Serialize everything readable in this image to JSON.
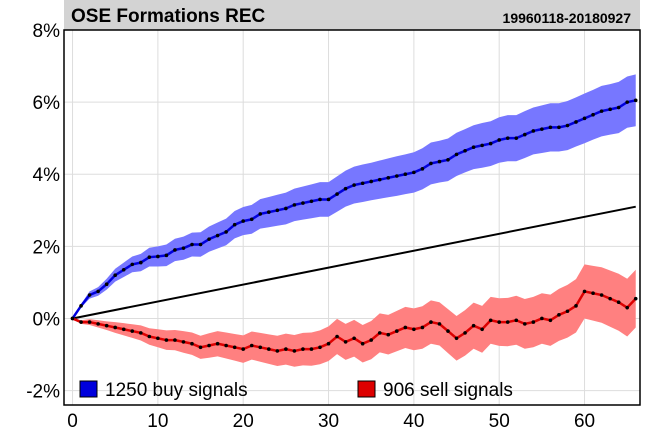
{
  "header": {
    "title": "OSE Formations REC",
    "date_range": "19960118-20180927"
  },
  "chart_data": {
    "type": "line",
    "title": "OSE Formations REC",
    "subtitle": "19960118-20180927",
    "xlim": [
      -1,
      66.5
    ],
    "ylim": [
      -2.4,
      8
    ],
    "x_ticks": [
      0,
      10,
      20,
      30,
      40,
      50,
      60
    ],
    "y_ticks": [
      -2,
      0,
      2,
      4,
      6,
      8
    ],
    "y_tick_labels": [
      "-2%",
      "0%",
      "2%",
      "4%",
      "6%",
      "8%"
    ],
    "grid": true,
    "legend_position": "bottom",
    "colors": {
      "buy": "#0000dd",
      "buy_band": "#7777ff",
      "sell": "#dd0000",
      "sell_band": "#ff8080",
      "benchmark": "#000000",
      "header_bg": "#d3d3d3"
    },
    "series": [
      {
        "name": "1250 buy signals",
        "x": [
          0,
          1,
          2,
          3,
          4,
          5,
          6,
          7,
          8,
          9,
          10,
          11,
          12,
          13,
          14,
          15,
          16,
          17,
          18,
          19,
          20,
          21,
          22,
          23,
          24,
          25,
          26,
          27,
          28,
          29,
          30,
          31,
          32,
          33,
          34,
          35,
          36,
          37,
          38,
          39,
          40,
          41,
          42,
          43,
          44,
          45,
          46,
          47,
          48,
          49,
          50,
          51,
          52,
          53,
          54,
          55,
          56,
          57,
          58,
          59,
          60,
          61,
          62,
          63,
          64,
          65,
          66
        ],
        "values": [
          0.0,
          0.35,
          0.65,
          0.75,
          0.95,
          1.2,
          1.35,
          1.5,
          1.55,
          1.7,
          1.72,
          1.75,
          1.9,
          1.95,
          2.05,
          2.05,
          2.2,
          2.3,
          2.4,
          2.6,
          2.7,
          2.75,
          2.9,
          2.95,
          3.0,
          3.05,
          3.15,
          3.2,
          3.25,
          3.3,
          3.3,
          3.45,
          3.6,
          3.7,
          3.75,
          3.8,
          3.85,
          3.9,
          3.95,
          4.0,
          4.05,
          4.15,
          4.3,
          4.35,
          4.4,
          4.55,
          4.65,
          4.75,
          4.8,
          4.85,
          4.95,
          5.0,
          5.0,
          5.1,
          5.2,
          5.25,
          5.3,
          5.3,
          5.35,
          5.45,
          5.55,
          5.65,
          5.75,
          5.8,
          5.85,
          6.0,
          6.05
        ],
        "band_half_width": [
          0.0,
          0.05,
          0.1,
          0.12,
          0.15,
          0.18,
          0.2,
          0.22,
          0.24,
          0.26,
          0.28,
          0.3,
          0.31,
          0.32,
          0.33,
          0.34,
          0.35,
          0.36,
          0.37,
          0.38,
          0.39,
          0.4,
          0.41,
          0.42,
          0.43,
          0.44,
          0.45,
          0.46,
          0.47,
          0.48,
          0.48,
          0.49,
          0.5,
          0.51,
          0.52,
          0.52,
          0.53,
          0.54,
          0.55,
          0.55,
          0.56,
          0.57,
          0.58,
          0.58,
          0.59,
          0.6,
          0.6,
          0.61,
          0.62,
          0.62,
          0.63,
          0.64,
          0.64,
          0.65,
          0.65,
          0.66,
          0.67,
          0.67,
          0.68,
          0.68,
          0.69,
          0.69,
          0.7,
          0.7,
          0.71,
          0.71,
          0.72
        ]
      },
      {
        "name": "906 sell signals",
        "x": [
          0,
          1,
          2,
          3,
          4,
          5,
          6,
          7,
          8,
          9,
          10,
          11,
          12,
          13,
          14,
          15,
          16,
          17,
          18,
          19,
          20,
          21,
          22,
          23,
          24,
          25,
          26,
          27,
          28,
          29,
          30,
          31,
          32,
          33,
          34,
          35,
          36,
          37,
          38,
          39,
          40,
          41,
          42,
          43,
          44,
          45,
          46,
          47,
          48,
          49,
          50,
          51,
          52,
          53,
          54,
          55,
          56,
          57,
          58,
          59,
          60,
          61,
          62,
          63,
          64,
          65,
          66
        ],
        "values": [
          0.0,
          -0.1,
          -0.1,
          -0.15,
          -0.2,
          -0.25,
          -0.3,
          -0.35,
          -0.4,
          -0.5,
          -0.55,
          -0.6,
          -0.6,
          -0.65,
          -0.7,
          -0.8,
          -0.75,
          -0.7,
          -0.75,
          -0.8,
          -0.85,
          -0.75,
          -0.8,
          -0.85,
          -0.9,
          -0.85,
          -0.9,
          -0.85,
          -0.85,
          -0.8,
          -0.7,
          -0.5,
          -0.65,
          -0.55,
          -0.7,
          -0.6,
          -0.4,
          -0.45,
          -0.35,
          -0.25,
          -0.3,
          -0.25,
          -0.1,
          -0.15,
          -0.35,
          -0.55,
          -0.4,
          -0.2,
          -0.3,
          -0.05,
          -0.1,
          -0.1,
          -0.05,
          -0.15,
          -0.1,
          0.0,
          -0.05,
          0.1,
          0.2,
          0.35,
          0.75,
          0.7,
          0.65,
          0.55,
          0.45,
          0.3,
          0.55
        ],
        "band_half_width": [
          0.0,
          0.05,
          0.08,
          0.1,
          0.12,
          0.15,
          0.17,
          0.19,
          0.21,
          0.23,
          0.25,
          0.27,
          0.28,
          0.3,
          0.31,
          0.32,
          0.34,
          0.35,
          0.36,
          0.37,
          0.38,
          0.39,
          0.4,
          0.41,
          0.42,
          0.43,
          0.44,
          0.45,
          0.46,
          0.47,
          0.48,
          0.49,
          0.5,
          0.51,
          0.52,
          0.53,
          0.54,
          0.55,
          0.56,
          0.57,
          0.58,
          0.59,
          0.6,
          0.6,
          0.61,
          0.62,
          0.63,
          0.64,
          0.65,
          0.65,
          0.66,
          0.67,
          0.68,
          0.69,
          0.7,
          0.7,
          0.71,
          0.72,
          0.73,
          0.74,
          0.75,
          0.76,
          0.77,
          0.78,
          0.79,
          0.8,
          0.8
        ]
      },
      {
        "name": "",
        "x": [
          0,
          66
        ],
        "values": [
          0.0,
          3.1
        ]
      }
    ],
    "legend": [
      {
        "label": "1250 buy signals",
        "color": "#0000dd"
      },
      {
        "label": "906 sell signals",
        "color": "#dd0000"
      }
    ]
  }
}
